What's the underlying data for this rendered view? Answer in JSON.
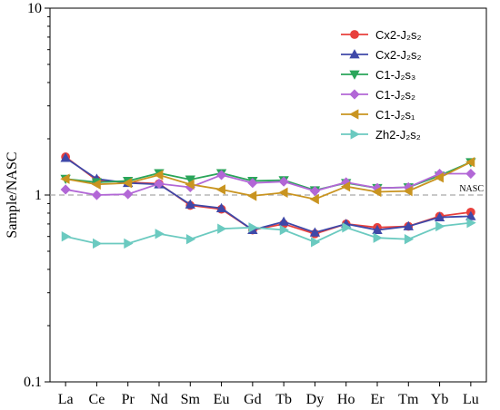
{
  "chart_data": {
    "type": "line",
    "yscale": "log",
    "ylim": [
      0.1,
      10
    ],
    "ylabel": "Sample/NASC",
    "xlabel": "",
    "yticks": [
      "0.1",
      "1",
      "10"
    ],
    "categories": [
      "La",
      "Ce",
      "Pr",
      "Nd",
      "Sm",
      "Eu",
      "Gd",
      "Tb",
      "Dy",
      "Ho",
      "Er",
      "Tm",
      "Yb",
      "Lu"
    ],
    "reference_line": {
      "label": "NASC",
      "value": 1,
      "color": "#a9a9a9"
    },
    "legend_position": "top-right",
    "series": [
      {
        "name": "Cx2-J₂s₂",
        "marker": "circle",
        "color": "#e8403c",
        "values": [
          1.6,
          1.2,
          1.17,
          1.15,
          0.88,
          0.84,
          0.65,
          0.7,
          0.62,
          0.7,
          0.67,
          0.68,
          0.77,
          0.81
        ]
      },
      {
        "name": "Cx2-J₂s₂",
        "marker": "triangle-up",
        "color": "#3f48a8",
        "values": [
          1.58,
          1.22,
          1.16,
          1.14,
          0.89,
          0.85,
          0.65,
          0.72,
          0.63,
          0.7,
          0.65,
          0.68,
          0.76,
          0.77
        ]
      },
      {
        "name": "C1-J₂s₃",
        "marker": "triangle-down",
        "color": "#2aa55a",
        "values": [
          1.22,
          1.17,
          1.19,
          1.31,
          1.21,
          1.31,
          1.19,
          1.2,
          1.06,
          1.16,
          1.09,
          1.1,
          1.27,
          1.5
        ]
      },
      {
        "name": "C1-J₂s₂",
        "marker": "diamond",
        "color": "#b267d6",
        "values": [
          1.07,
          1.0,
          1.01,
          1.15,
          1.1,
          1.28,
          1.16,
          1.18,
          1.05,
          1.17,
          1.09,
          1.1,
          1.3,
          1.3
        ]
      },
      {
        "name": "C1-J₂s₁",
        "marker": "triangle-left",
        "color": "#c99420",
        "values": [
          1.22,
          1.14,
          1.16,
          1.28,
          1.14,
          1.07,
          0.99,
          1.03,
          0.95,
          1.11,
          1.04,
          1.05,
          1.24,
          1.5
        ]
      },
      {
        "name": "Zh2-J₂s₂",
        "marker": "triangle-right",
        "color": "#6bcac0",
        "values": [
          0.6,
          0.55,
          0.55,
          0.62,
          0.58,
          0.66,
          0.67,
          0.65,
          0.56,
          0.67,
          0.59,
          0.58,
          0.68,
          0.71
        ]
      }
    ]
  }
}
